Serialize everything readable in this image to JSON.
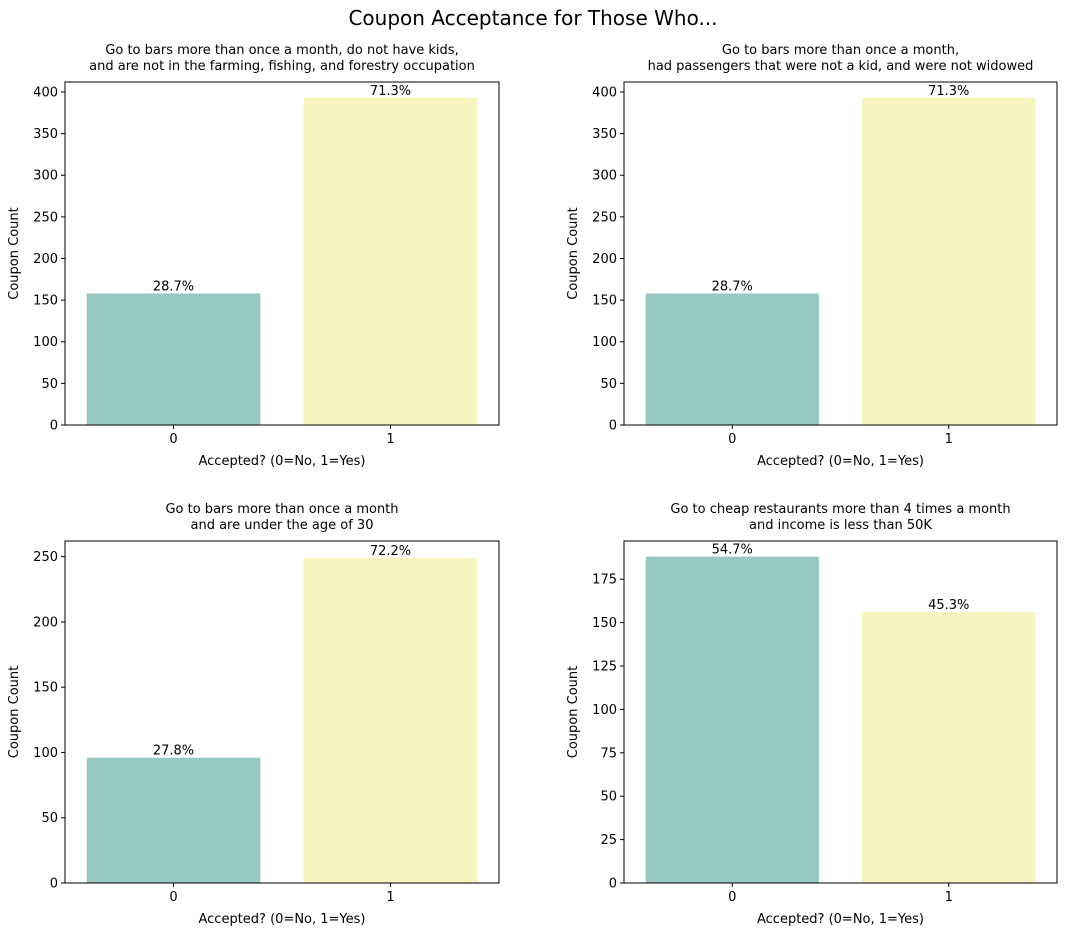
{
  "title": "Coupon Acceptance for Those Who...",
  "chart_data": [
    {
      "type": "bar",
      "title_lines": [
        "Go to bars more than once a month, do not have kids,",
        "and are not in the farming, fishing, and forestry occupation"
      ],
      "xlabel": "Accepted? (0=No, 1=Yes)",
      "ylabel": "Coupon Count",
      "categories": [
        "0",
        "1"
      ],
      "values": [
        158,
        393
      ],
      "data_labels": [
        "28.7%",
        "71.3%"
      ],
      "ylim": [
        0,
        412
      ],
      "yticks": [
        0,
        50,
        100,
        150,
        200,
        250,
        300,
        350,
        400
      ],
      "colors": [
        "#97c8c2",
        "#f5f5bd"
      ]
    },
    {
      "type": "bar",
      "title_lines": [
        "Go to bars more than once a month,",
        "had passengers that were not a kid, and were not widowed"
      ],
      "xlabel": "Accepted? (0=No, 1=Yes)",
      "ylabel": "Coupon Count",
      "categories": [
        "0",
        "1"
      ],
      "values": [
        158,
        393
      ],
      "data_labels": [
        "28.7%",
        "71.3%"
      ],
      "ylim": [
        0,
        412
      ],
      "yticks": [
        0,
        50,
        100,
        150,
        200,
        250,
        300,
        350,
        400
      ],
      "colors": [
        "#97c8c2",
        "#f5f5bd"
      ]
    },
    {
      "type": "bar",
      "title_lines": [
        "Go to bars more than once a month",
        "and are under the age of 30"
      ],
      "xlabel": "Accepted? (0=No, 1=Yes)",
      "ylabel": "Coupon Count",
      "categories": [
        "0",
        "1"
      ],
      "values": [
        96,
        249
      ],
      "data_labels": [
        "27.8%",
        "72.2%"
      ],
      "ylim": [
        0,
        262
      ],
      "yticks": [
        0,
        50,
        100,
        150,
        200,
        250
      ],
      "colors": [
        "#97c8c2",
        "#f5f5bd"
      ]
    },
    {
      "type": "bar",
      "title_lines": [
        "Go to cheap restaurants more than 4 times a month",
        "and income is less than 50K"
      ],
      "xlabel": "Accepted? (0=No, 1=Yes)",
      "ylabel": "Coupon Count",
      "categories": [
        "0",
        "1"
      ],
      "values": [
        188,
        156
      ],
      "data_labels": [
        "54.7%",
        "45.3%"
      ],
      "ylim": [
        0,
        197
      ],
      "yticks": [
        0,
        25,
        50,
        75,
        100,
        125,
        150,
        175
      ],
      "colors": [
        "#97c8c2",
        "#f5f5bd"
      ]
    }
  ]
}
